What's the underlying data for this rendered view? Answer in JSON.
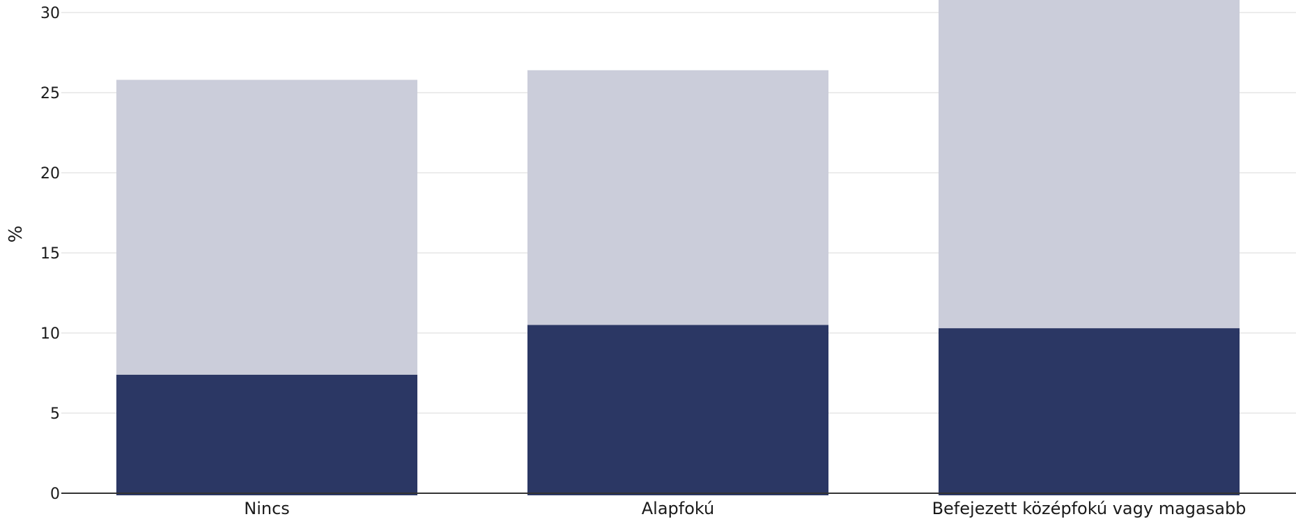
{
  "chart_data": {
    "type": "bar",
    "stacked": true,
    "categories": [
      "Nincs",
      "Alapfokú",
      "Befejezett középfokú vagy magasabb"
    ],
    "series": [
      {
        "values": [
          7.4,
          10.5,
          10.3
        ],
        "color": "#2b3764"
      },
      {
        "values": [
          18.4,
          15.9,
          20.7
        ],
        "color": "#cbcdda"
      }
    ],
    "xlabel": "",
    "ylabel": "%",
    "ylim": [
      0,
      30
    ],
    "yticks": [
      0,
      5,
      10,
      15,
      20,
      25,
      30
    ],
    "grid": true,
    "gridColor": "#e6e6e6",
    "axisColor": "#333333"
  }
}
